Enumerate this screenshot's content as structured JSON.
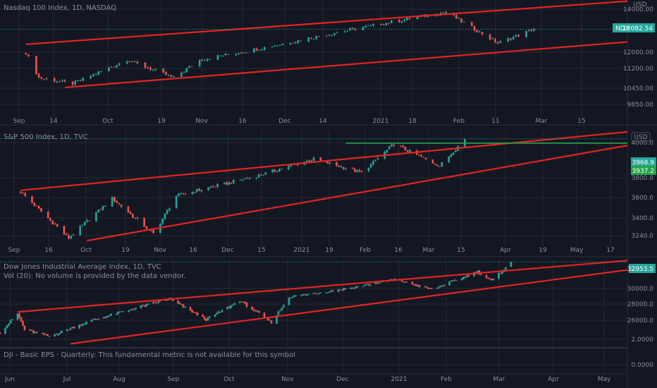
{
  "colors": {
    "background": "#131722",
    "grid": "#242836",
    "up": "#26a69a",
    "down": "#ef5350",
    "trendline": "#e32424",
    "hline_green": "#23a34a",
    "price_label_bg": "#26a69a",
    "text": "#8a8f9c",
    "separator": "#2a2e39"
  },
  "panes": [
    {
      "id": "ndx",
      "title": "Nasdaq 100 Index, 1D, NASDAQ",
      "currency": "USD",
      "price_badge": {
        "symbol": "NDX",
        "value": "13082.54"
      },
      "y_ticks": [
        "14000.00",
        "12000.00",
        "11200.00",
        "10450.00",
        "9850.00"
      ],
      "x_ticks": [
        "Sep",
        "14",
        "Oct",
        "19",
        "Nov",
        "16",
        "Dec",
        "14",
        "2021",
        "18",
        "Feb",
        "11",
        "Mar",
        "15"
      ]
    },
    {
      "id": "spx",
      "title": "S&P 500 Index, 1D, TVC",
      "currency": "USD",
      "price_badges": [
        "3968.9",
        "3937.2"
      ],
      "y_ticks": [
        "4000.0",
        "3800.0",
        "3600.0",
        "3400.0",
        "3240.0"
      ],
      "x_ticks": [
        "Sep",
        "16",
        "Oct",
        "19",
        "Nov",
        "16",
        "Dec",
        "15",
        "2021",
        "19",
        "Feb",
        "16",
        "Mar",
        "15",
        "Apr",
        "19",
        "May",
        "17"
      ]
    },
    {
      "id": "dji",
      "title": "Dow Jones Industrial Average Index, 1D, TVC",
      "volume_note": "Vol (20): No volume is provided by the data vendor.",
      "price_badge": "32953.5",
      "y_ticks": [
        "30000.0",
        "28000.0",
        "26000.0"
      ],
      "eps_note": "DJI - Basic EPS · Quarterly: This fundamental metric is not available for this symbol",
      "eps_y_ticks": [
        "2.0000",
        "0.0000"
      ],
      "x_ticks": [
        "Jun",
        "Jul",
        "Aug",
        "Sep",
        "Oct",
        "Nov",
        "Dec",
        "2021",
        "Feb",
        "Mar",
        "Apr",
        "May"
      ]
    }
  ],
  "chart_data": [
    {
      "type": "candlestick",
      "title": "Nasdaq 100 Index, 1D, NASDAQ",
      "ylabel": "USD",
      "ylim": [
        9500,
        14300
      ],
      "current_price": 13082.54,
      "trend_channel": {
        "upper": [
          [
            "2020-09-03",
            12450
          ],
          [
            "2021-04-23",
            14250
          ]
        ],
        "lower": [
          [
            "2020-09-18",
            10650
          ],
          [
            "2021-04-23",
            12550
          ]
        ]
      },
      "series": [
        {
          "x": "2020-09-03",
          "y": 12100
        },
        {
          "x": "2020-09-08",
          "y": 11050
        },
        {
          "x": "2020-09-21",
          "y": 10800
        },
        {
          "x": "2020-10-12",
          "y": 11800
        },
        {
          "x": "2020-10-30",
          "y": 11050
        },
        {
          "x": "2020-11-09",
          "y": 11800
        },
        {
          "x": "2020-12-10",
          "y": 12450
        },
        {
          "x": "2021-01-08",
          "y": 13100
        },
        {
          "x": "2021-02-12",
          "y": 13800
        },
        {
          "x": "2021-03-04",
          "y": 12500
        },
        {
          "x": "2021-03-18",
          "y": 13082.54
        }
      ]
    },
    {
      "type": "candlestick",
      "title": "S&P 500 Index, 1D, TVC",
      "ylabel": "USD",
      "ylim": [
        3200,
        4030
      ],
      "current_price": 3968.9,
      "horizontal_line": 3937.2,
      "trend_channel": {
        "upper": [
          [
            "2020-09-02",
            3590
          ],
          [
            "2021-05-25",
            4020
          ]
        ],
        "lower": [
          [
            "2020-10-01",
            3220
          ],
          [
            "2021-05-25",
            3920
          ]
        ]
      },
      "series": [
        {
          "x": "2020-09-02",
          "y": 3580
        },
        {
          "x": "2020-09-23",
          "y": 3240
        },
        {
          "x": "2020-10-12",
          "y": 3530
        },
        {
          "x": "2020-10-30",
          "y": 3270
        },
        {
          "x": "2020-11-09",
          "y": 3550
        },
        {
          "x": "2020-12-15",
          "y": 3700
        },
        {
          "x": "2021-01-08",
          "y": 3820
        },
        {
          "x": "2021-01-29",
          "y": 3720
        },
        {
          "x": "2021-02-12",
          "y": 3930
        },
        {
          "x": "2021-03-04",
          "y": 3770
        },
        {
          "x": "2021-03-15",
          "y": 3968.9
        }
      ]
    },
    {
      "type": "candlestick",
      "title": "Dow Jones Industrial Average Index, 1D, TVC",
      "ylim": [
        24000,
        33200
      ],
      "current_price": 32953.5,
      "trend_channel": {
        "upper": [
          [
            "2020-06-08",
            27600
          ],
          [
            "2021-05-20",
            33100
          ]
        ],
        "lower": [
          [
            "2020-07-08",
            24200
          ],
          [
            "2021-05-20",
            32100
          ]
        ]
      },
      "series": [
        {
          "x": "2020-05-29",
          "y": 25400
        },
        {
          "x": "2020-06-08",
          "y": 27400
        },
        {
          "x": "2020-06-12",
          "y": 25700
        },
        {
          "x": "2020-06-26",
          "y": 25000
        },
        {
          "x": "2020-07-20",
          "y": 26700
        },
        {
          "x": "2020-09-02",
          "y": 29000
        },
        {
          "x": "2020-09-23",
          "y": 26800
        },
        {
          "x": "2020-10-12",
          "y": 28800
        },
        {
          "x": "2020-10-30",
          "y": 26500
        },
        {
          "x": "2020-11-09",
          "y": 29200
        },
        {
          "x": "2020-12-15",
          "y": 30200
        },
        {
          "x": "2021-01-08",
          "y": 31100
        },
        {
          "x": "2021-01-29",
          "y": 30000
        },
        {
          "x": "2021-02-24",
          "y": 31900
        },
        {
          "x": "2021-03-04",
          "y": 30900
        },
        {
          "x": "2021-03-15",
          "y": 32953.5
        }
      ]
    }
  ]
}
